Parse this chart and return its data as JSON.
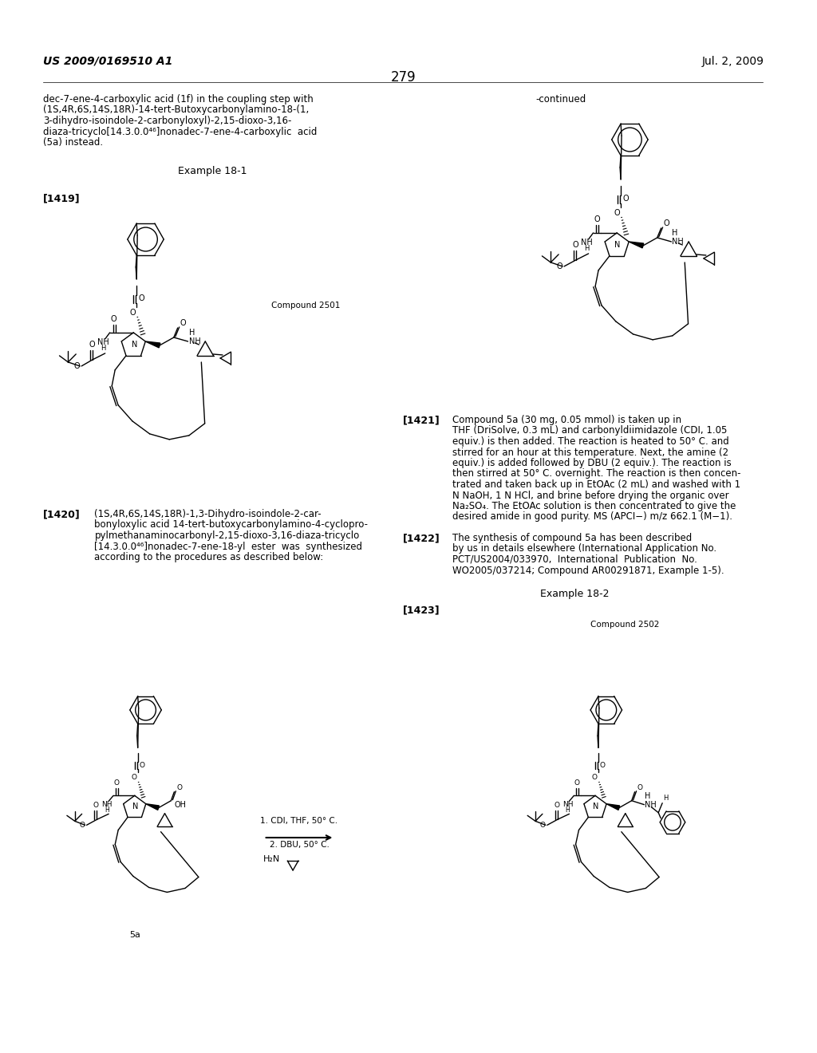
{
  "bg": "#ffffff",
  "header_left": "US 2009/0169510 A1",
  "header_right": "Jul. 2, 2009",
  "page_num": "279",
  "continued": "-continued",
  "ex18_1": "Example 18-1",
  "ex18_2": "Example 18-2",
  "ref1419": "[1419]",
  "ref1420": "[1420]",
  "ref1421": "[1421]",
  "ref1422": "[1422]",
  "ref1423": "[1423]",
  "cpd2501": "Compound 2501",
  "cpd2502": "Compound 2502",
  "lbl5a": "5a",
  "top_text": [
    "dec-7-ene-4-carboxylic acid (1f) in the coupling step with",
    "(1S,4R,6S,14S,18R)-14-tert-Butoxycarbonylamino-18-(1,",
    "3-dihydro-isoindole-2-carbonyloxyl)-2,15-dioxo-3,16-",
    "diaza-tricyclo[14.3.0.0⁴⁶]nonadec-7-ene-4-carboxylic  acid",
    "(5a) instead."
  ],
  "text1420": [
    "(1S,4R,6S,14S,18R)-1,3-Dihydro-isoindole-2-car-",
    "bonyloxylic acid 14-tert-butoxycarbonylamino-4-cyclopro-",
    "pylmethanaminocarbonyl-2,15-dioxo-3,16-diaza-tricyclo",
    "[14.3.0.0⁴⁶]nonadec-7-ene-18-yl  ester  was  synthesized",
    "according to the procedures as described below:"
  ],
  "text1421": [
    "Compound 5a (30 mg, 0.05 mmol) is taken up in",
    "THF (DriSolve, 0.3 mL) and carbonyldiimidazole (CDI, 1.05",
    "equiv.) is then added. The reaction is heated to 50° C. and",
    "stirred for an hour at this temperature. Next, the amine (2",
    "equiv.) is added followed by DBU (2 equiv.). The reaction is",
    "then stirred at 50° C. overnight. The reaction is then concen-",
    "trated and taken back up in EtOAc (2 mL) and washed with 1",
    "N NaOH, 1 N HCl, and brine before drying the organic over",
    "Na₂SO₄. The EtOAc solution is then concentrated to give the",
    "desired amide in good purity. MS (APCI−) m/z 662.1 (M−1)."
  ],
  "text1422": [
    "The synthesis of compound 5a has been described",
    "by us in details elsewhere (International Application No.",
    "PCT/US2004/033970,  International  Publication  No.",
    "WO2005/037214; Compound AR00291871, Example 1-5)."
  ],
  "arrow_lbl1": "1. CDI, THF, 50° C.",
  "arrow_lbl2": "2. DBU, 50° C.",
  "amine_lbl": "H₂N"
}
